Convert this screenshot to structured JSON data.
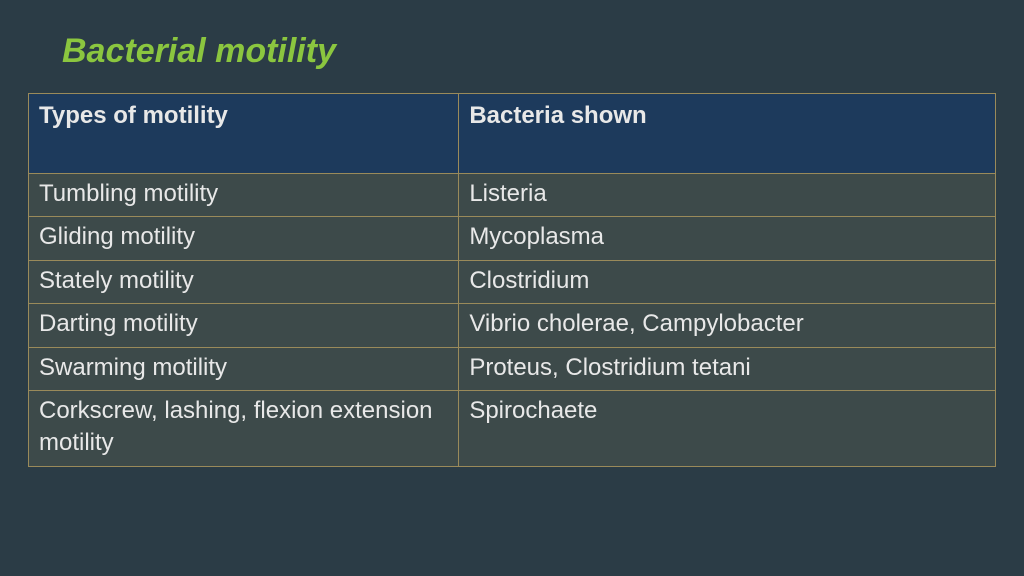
{
  "slide": {
    "title": "Bacterial motility",
    "background_color": "#2b3c46",
    "title_color": "#8bc63f",
    "title_fontsize": 34
  },
  "table": {
    "border_color": "#9a8a5a",
    "header_bg": "#1d3a5c",
    "body_bg": "#3d4a4a",
    "text_color": "#e8e8e8",
    "cell_fontsize": 24,
    "col_widths_pct": [
      44.5,
      55.5
    ],
    "columns": [
      "Types of motility",
      "Bacteria shown"
    ],
    "rows": [
      [
        "Tumbling  motility",
        "Listeria"
      ],
      [
        "Gliding motility",
        "Mycoplasma"
      ],
      [
        "Stately motility",
        "Clostridium"
      ],
      [
        "Darting motility",
        "Vibrio cholerae, Campylobacter"
      ],
      [
        "Swarming motility",
        "Proteus, Clostridium tetani"
      ],
      [
        "Corkscrew, lashing, flexion extension motility",
        "Spirochaete"
      ]
    ]
  }
}
